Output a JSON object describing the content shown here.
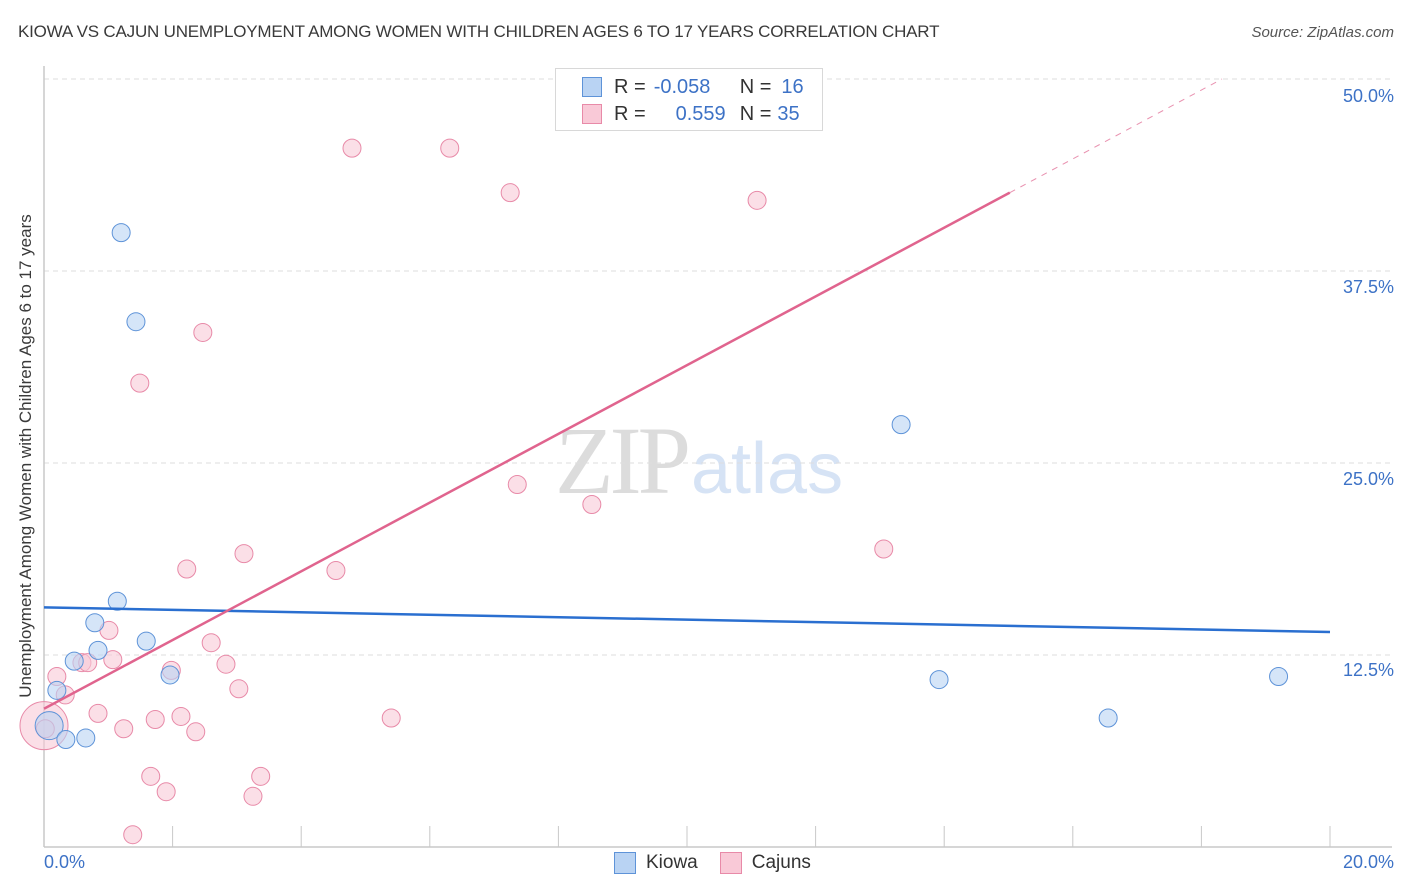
{
  "header": {
    "title": "KIOWA VS CAJUN UNEMPLOYMENT AMONG WOMEN WITH CHILDREN AGES 6 TO 17 YEARS CORRELATION CHART",
    "source": "Source: ZipAtlas.com"
  },
  "legend": {
    "kiowa": {
      "r_label": "R =",
      "r_value": "-0.058",
      "n_label": "N =",
      "n_value": "16"
    },
    "cajuns": {
      "r_label": "R =",
      "r_value": "0.559",
      "n_label": "N =",
      "n_value": "35"
    }
  },
  "bottom_legend": {
    "kiowa": "Kiowa",
    "cajuns": "Cajuns"
  },
  "axes": {
    "ylabel": "Unemployment Among Women with Children Ages 6 to 17 years",
    "yticks": [
      "50.0%",
      "37.5%",
      "25.0%",
      "12.5%"
    ],
    "xticks": [
      "0.0%",
      "20.0%"
    ]
  },
  "watermark": {
    "zip": "ZIP",
    "atlas": "atlas"
  },
  "colors": {
    "kiowa_fill": "#b9d3f3",
    "kiowa_stroke": "#5e93d8",
    "kiowa_line": "#2a6fd0",
    "cajuns_fill": "#f9c9d7",
    "cajuns_stroke": "#e88aa8",
    "cajuns_line": "#e0648e",
    "tick_label": "#3d72c6"
  },
  "chart_data": {
    "type": "scatter",
    "title": "KIOWA VS CAJUN UNEMPLOYMENT AMONG WOMEN WITH CHILDREN AGES 6 TO 17 YEARS CORRELATION CHART",
    "xlabel": "",
    "ylabel": "Unemployment Among Women with Children Ages 6 to 17 years",
    "xlim": [
      0,
      20
    ],
    "ylim": [
      0,
      50
    ],
    "x_unit": "%",
    "y_unit": "%",
    "grid": true,
    "legend_position": "top-center and bottom-center",
    "series": [
      {
        "name": "Kiowa",
        "R": -0.058,
        "N": 16,
        "points": [
          [
            1.2,
            40.0
          ],
          [
            1.43,
            34.2
          ],
          [
            13.33,
            27.5
          ],
          [
            1.14,
            16.0
          ],
          [
            0.79,
            14.6
          ],
          [
            1.59,
            13.4
          ],
          [
            0.47,
            12.1
          ],
          [
            0.84,
            12.8
          ],
          [
            1.96,
            11.2
          ],
          [
            0.2,
            10.2
          ],
          [
            0.08,
            7.9
          ],
          [
            0.34,
            7.0
          ],
          [
            0.65,
            7.1
          ],
          [
            13.92,
            10.9
          ],
          [
            16.55,
            8.4
          ],
          [
            19.2,
            11.1
          ]
        ],
        "trendline": {
          "x": [
            0,
            20
          ],
          "y": [
            15.6,
            14.0
          ]
        }
      },
      {
        "name": "Cajuns",
        "R": 0.559,
        "N": 35,
        "points": [
          [
            4.79,
            45.5
          ],
          [
            6.31,
            45.5
          ],
          [
            7.25,
            42.6
          ],
          [
            11.09,
            42.1
          ],
          [
            2.47,
            33.5
          ],
          [
            1.49,
            30.2
          ],
          [
            7.36,
            23.6
          ],
          [
            8.52,
            22.3
          ],
          [
            13.06,
            19.4
          ],
          [
            3.11,
            19.1
          ],
          [
            2.22,
            18.1
          ],
          [
            4.54,
            18.0
          ],
          [
            1.01,
            14.1
          ],
          [
            2.6,
            13.3
          ],
          [
            0.59,
            12.0
          ],
          [
            0.68,
            12.0
          ],
          [
            1.07,
            12.2
          ],
          [
            1.98,
            11.5
          ],
          [
            2.83,
            11.9
          ],
          [
            0.2,
            11.1
          ],
          [
            0.33,
            9.9
          ],
          [
            3.03,
            10.3
          ],
          [
            0.84,
            8.7
          ],
          [
            5.4,
            8.4
          ],
          [
            1.73,
            8.3
          ],
          [
            2.13,
            8.5
          ],
          [
            1.24,
            7.7
          ],
          [
            2.36,
            7.5
          ],
          [
            0.0,
            7.9
          ],
          [
            1.66,
            4.6
          ],
          [
            1.9,
            3.6
          ],
          [
            3.37,
            4.6
          ],
          [
            3.25,
            3.3
          ],
          [
            1.38,
            0.8
          ],
          [
            0.02,
            7.7
          ]
        ],
        "trendline": {
          "x": [
            0,
            15.02
          ],
          "y": [
            9.0,
            42.6
          ],
          "dashed_extension": {
            "x": [
              15.02,
              18.32
            ],
            "y": [
              42.6,
              50.0
            ]
          }
        }
      }
    ]
  }
}
